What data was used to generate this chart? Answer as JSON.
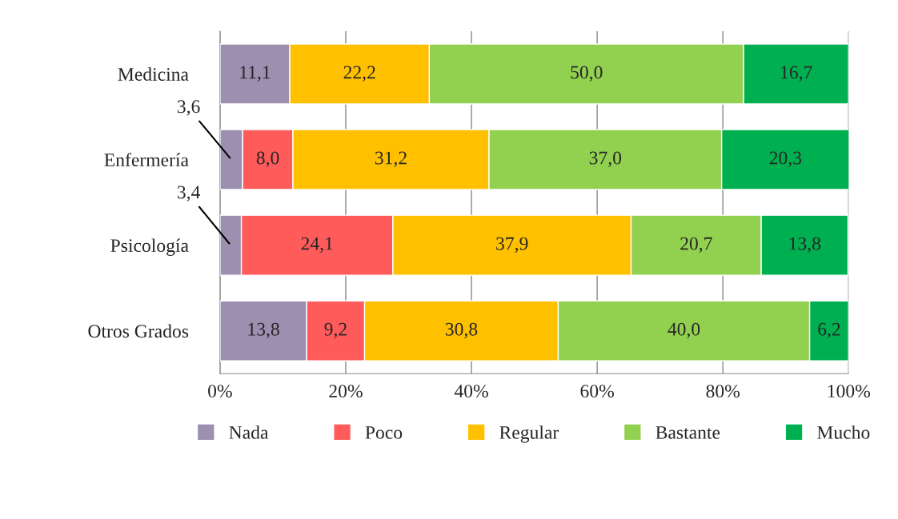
{
  "chart_data": {
    "type": "bar",
    "orientation": "horizontal",
    "stacked": true,
    "categories": [
      "Medicina",
      "Enfermería",
      "Psicología",
      "Otros Grados"
    ],
    "series": [
      {
        "name": "Nada",
        "color": "#9c8fb0",
        "values": [
          11.1,
          3.6,
          3.4,
          13.8
        ],
        "value_labels": [
          "11,1",
          "3,6",
          "3,4",
          "13,8"
        ]
      },
      {
        "name": "Poco",
        "color": "#ff5b5b",
        "values": [
          null,
          8.0,
          24.1,
          9.2
        ],
        "value_labels": [
          null,
          "8,0",
          "24,1",
          "9,2"
        ]
      },
      {
        "name": "Regular",
        "color": "#ffc000",
        "values": [
          22.2,
          31.2,
          37.9,
          30.8
        ],
        "value_labels": [
          "22,2",
          "31,2",
          "37,9",
          "30,8"
        ]
      },
      {
        "name": "Bastante",
        "color": "#92d050",
        "values": [
          50.0,
          37.0,
          20.7,
          40.0
        ],
        "value_labels": [
          "50,0",
          "37,0",
          "20,7",
          "40,0"
        ]
      },
      {
        "name": "Mucho",
        "color": "#00b050",
        "values": [
          16.7,
          20.3,
          13.8,
          6.2
        ],
        "value_labels": [
          "16,7",
          "20,3",
          "13,8",
          "6,2"
        ]
      }
    ],
    "xlim": [
      0,
      100
    ],
    "xticks": [
      {
        "value": 0,
        "label": "0%"
      },
      {
        "value": 20,
        "label": "20%"
      },
      {
        "value": 40,
        "label": "40%"
      },
      {
        "value": 60,
        "label": "60%"
      },
      {
        "value": 80,
        "label": "80%"
      },
      {
        "value": 100,
        "label": "100%"
      }
    ],
    "grid": "x",
    "legend": "bottom"
  }
}
